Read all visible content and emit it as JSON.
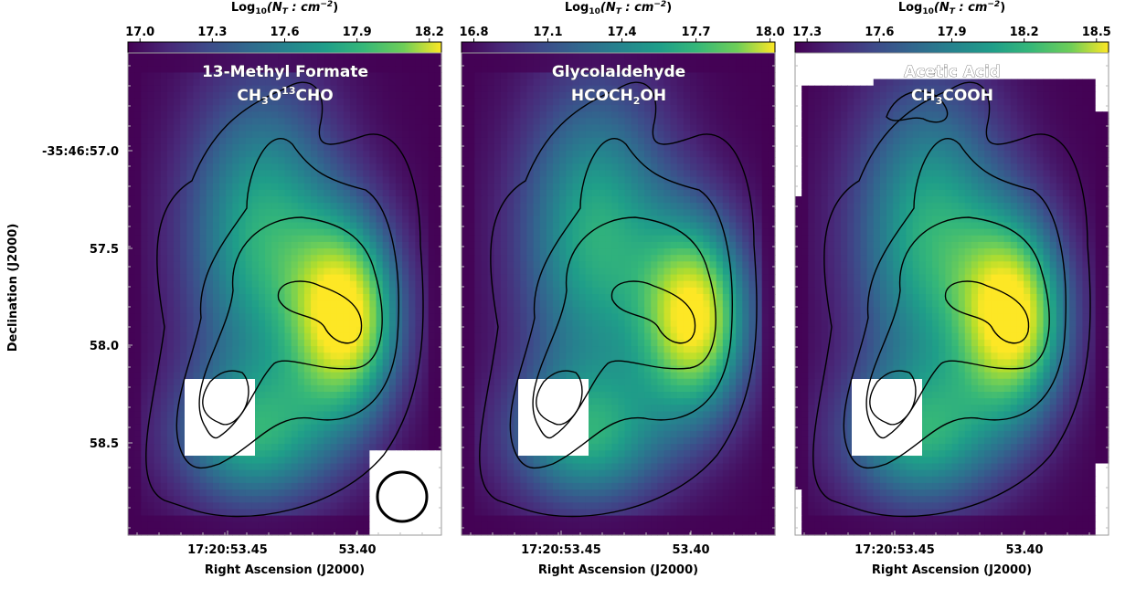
{
  "chart_data": [
    {
      "type": "heatmap",
      "title": "13-Methyl Formate",
      "formula": {
        "base": "CH",
        "sub1": "3",
        "mid": "O",
        "sup": "13",
        "end": "CHO"
      },
      "colorbar": {
        "label": "Log10(NT:cm-2)",
        "label_main": "Log",
        "label_sub": "10",
        "label_rest": "(N_T : cm^-2)",
        "ticks": [
          "17.0",
          "17.3",
          "17.6",
          "17.9",
          "18.2"
        ],
        "range": [
          16.95,
          18.25
        ]
      },
      "peak": [
        0.7,
        0.55
      ],
      "core_value": 18.2,
      "has_beam": true,
      "beam_label": "synthesized beam",
      "xlabel": "Right Ascension (J2000)",
      "xticks": [
        "17:20:53.45",
        "53.40"
      ],
      "ylabel": "Declination (J2000)",
      "yticks": [
        "-35:46:57.0",
        "57.5",
        "58.0",
        "58.5"
      ],
      "show_yaxis": true
    },
    {
      "type": "heatmap",
      "title": "Glycolaldehyde",
      "formula": {
        "base": "HCOCH",
        "sub1": "2",
        "mid": "OH",
        "sup": "",
        "end": ""
      },
      "colorbar": {
        "label": "Log10(NT:cm-2)",
        "label_main": "Log",
        "label_sub": "10",
        "label_rest": "(N_T : cm^-2)",
        "ticks": [
          "16.8",
          "17.1",
          "17.4",
          "17.7",
          "18.0"
        ],
        "range": [
          16.75,
          18.02
        ]
      },
      "peak": [
        0.75,
        0.55
      ],
      "core_value": 18.0,
      "has_beam": false,
      "xlabel": "Right Ascension (J2000)",
      "xticks": [
        "17:20:53.45",
        "53.40"
      ],
      "show_yaxis": false
    },
    {
      "type": "heatmap",
      "title": "Acetic Acid",
      "formula": {
        "base": "CH",
        "sub1": "3",
        "mid": "COOH",
        "sup": "",
        "end": ""
      },
      "colorbar": {
        "label": "Log10(NT:cm-2)",
        "label_main": "Log",
        "label_sub": "10",
        "label_rest": "(N_T : cm^-2)",
        "ticks": [
          "17.3",
          "17.6",
          "17.9",
          "18.2",
          "18.5"
        ],
        "range": [
          17.25,
          18.55
        ]
      },
      "peak": [
        0.7,
        0.55
      ],
      "core_value": 18.5,
      "has_beam": false,
      "xlabel": "Right Ascension (J2000)",
      "xticks": [
        "17:20:53.45",
        "53.40"
      ],
      "show_yaxis": false
    }
  ],
  "contour_levels": 4,
  "colormap": "viridis",
  "colors": {
    "viridis_low": "#440154",
    "viridis_mid": "#21918c",
    "viridis_high": "#fde725",
    "contour": "#000000",
    "mask": "#ffffff"
  }
}
